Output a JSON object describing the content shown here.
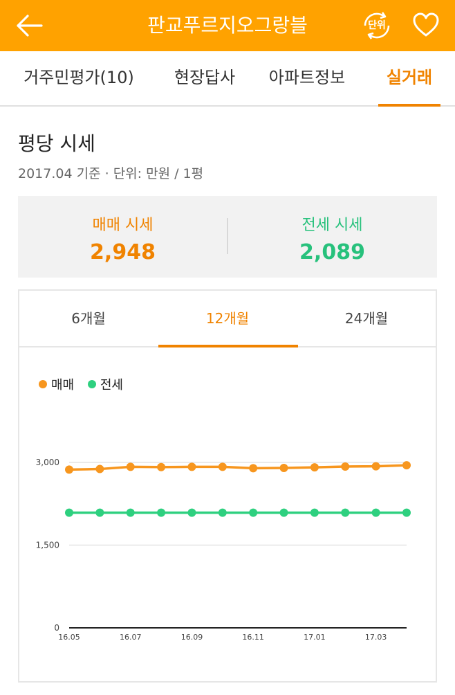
{
  "header": {
    "title": "판교푸르지오그랑블",
    "unit_button_label": "단위"
  },
  "tabs": [
    {
      "label": "거주민평가(10)"
    },
    {
      "label": "현장답사"
    },
    {
      "label": "아파트정보"
    },
    {
      "label": "실거래"
    }
  ],
  "section": {
    "title": "평당 시세",
    "subtitle": "2017.04 기준 · 단위: 만원 / 1평"
  },
  "summary": {
    "sale": {
      "label": "매매 시세",
      "value": "2,948"
    },
    "jeonse": {
      "label": "전세 시세",
      "value": "2,089"
    }
  },
  "period_tabs": [
    {
      "label": "6개월"
    },
    {
      "label": "12개월"
    },
    {
      "label": "24개월"
    }
  ],
  "colors": {
    "header": "#FFA200",
    "accent": "#F08300",
    "sale": "#F7961E",
    "jeonse": "#2ED07F"
  },
  "chart_data": {
    "type": "line",
    "x": [
      "16.05",
      "16.06",
      "16.07",
      "16.08",
      "16.09",
      "16.10",
      "16.11",
      "16.12",
      "17.01",
      "17.02",
      "17.03",
      "17.04"
    ],
    "x_tick_labels": [
      "16.05",
      "16.07",
      "16.09",
      "16.11",
      "17.01",
      "17.03"
    ],
    "y_ticks": [
      0,
      1500,
      3000
    ],
    "y_tick_labels": [
      "0",
      "1,500",
      "3,000"
    ],
    "ylim": [
      0,
      3000
    ],
    "grid": true,
    "legend_position": "top-left",
    "series": [
      {
        "name": "매매",
        "color": "#F7961E",
        "values": [
          2870,
          2880,
          2920,
          2915,
          2920,
          2920,
          2895,
          2900,
          2910,
          2925,
          2930,
          2948
        ]
      },
      {
        "name": "전세",
        "color": "#2ED07F",
        "values": [
          2089,
          2089,
          2089,
          2089,
          2089,
          2089,
          2089,
          2089,
          2089,
          2089,
          2089,
          2089
        ]
      }
    ]
  }
}
